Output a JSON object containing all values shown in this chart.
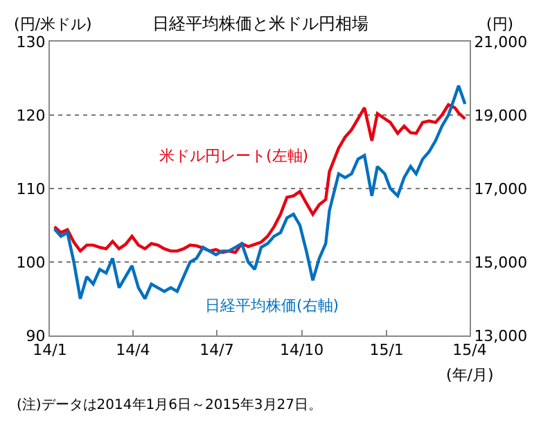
{
  "chart_data": {
    "type": "line",
    "title": "日経平均株価と米ドル円相場",
    "ylabel": "(円/米ドル)",
    "y2label": "(円)",
    "xlabel": "(年/月)",
    "x": [
      "2014-01-06",
      "2014-01-13",
      "2014-01-20",
      "2014-01-27",
      "2014-02-03",
      "2014-02-10",
      "2014-02-17",
      "2014-02-24",
      "2014-03-03",
      "2014-03-10",
      "2014-03-17",
      "2014-03-24",
      "2014-03-31",
      "2014-04-07",
      "2014-04-14",
      "2014-04-21",
      "2014-04-28",
      "2014-05-05",
      "2014-05-12",
      "2014-05-19",
      "2014-05-26",
      "2014-06-02",
      "2014-06-09",
      "2014-06-16",
      "2014-06-23",
      "2014-06-30",
      "2014-07-07",
      "2014-07-14",
      "2014-07-21",
      "2014-07-28",
      "2014-08-04",
      "2014-08-11",
      "2014-08-18",
      "2014-08-25",
      "2014-09-01",
      "2014-09-08",
      "2014-09-15",
      "2014-09-22",
      "2014-09-29",
      "2014-10-06",
      "2014-10-13",
      "2014-10-20",
      "2014-10-27",
      "2014-10-31",
      "2014-11-10",
      "2014-11-17",
      "2014-11-24",
      "2014-12-01",
      "2014-12-08",
      "2014-12-16",
      "2014-12-22",
      "2014-12-30",
      "2015-01-05",
      "2015-01-13",
      "2015-01-20",
      "2015-01-27",
      "2015-02-02",
      "2015-02-09",
      "2015-02-16",
      "2015-02-23",
      "2015-03-02",
      "2015-03-09",
      "2015-03-16",
      "2015-03-20",
      "2015-03-27"
    ],
    "series": [
      {
        "name": "米ドル円レート(左軸)",
        "color": "#e60012",
        "values": [
          104.8,
          104.0,
          104.4,
          102.7,
          101.5,
          102.3,
          102.3,
          102.0,
          101.8,
          102.8,
          101.8,
          102.4,
          103.5,
          102.3,
          101.8,
          102.5,
          102.3,
          101.8,
          101.5,
          101.5,
          101.8,
          102.3,
          102.2,
          101.9,
          101.5,
          101.7,
          101.3,
          101.5,
          101.3,
          102.5,
          102.1,
          102.4,
          102.7,
          103.5,
          104.8,
          106.5,
          108.8,
          109.0,
          109.6,
          108.0,
          106.5,
          107.8,
          108.5,
          112.3,
          115.5,
          117.0,
          118.0,
          119.5,
          121.0,
          116.5,
          120.2,
          119.5,
          119.0,
          117.5,
          118.5,
          117.6,
          117.5,
          119.0,
          119.2,
          119.0,
          120.0,
          121.4,
          121.0,
          120.3,
          119.5
        ]
      },
      {
        "name": "日経平均株価(右軸)",
        "color": "#0070c0",
        "axis": "y2",
        "values": [
          15900,
          15700,
          15800,
          15000,
          14000,
          14600,
          14400,
          14800,
          14700,
          15100,
          14300,
          14600,
          14900,
          14300,
          14000,
          14400,
          14300,
          14200,
          14300,
          14200,
          14600,
          15000,
          15100,
          15400,
          15300,
          15200,
          15300,
          15300,
          15400,
          15500,
          15000,
          14800,
          15400,
          15500,
          15700,
          15800,
          16200,
          16300,
          16000,
          15300,
          14500,
          15100,
          15500,
          16400,
          17400,
          17300,
          17400,
          17800,
          17900,
          16800,
          17600,
          17400,
          17000,
          16800,
          17300,
          17600,
          17400,
          17800,
          18000,
          18300,
          18700,
          19000,
          19500,
          19800,
          19300
        ]
      }
    ],
    "xlim": [
      "2014-01-01",
      "2015-04-01"
    ],
    "xticks": [
      {
        "value": "2014-01-01",
        "label": "14/1"
      },
      {
        "value": "2014-04-01",
        "label": "14/4"
      },
      {
        "value": "2014-07-01",
        "label": "14/7"
      },
      {
        "value": "2014-10-01",
        "label": "14/10"
      },
      {
        "value": "2015-01-01",
        "label": "15/1"
      },
      {
        "value": "2015-04-01",
        "label": "15/4"
      }
    ],
    "ylim": [
      90,
      130
    ],
    "yticks": [
      90,
      100,
      110,
      120,
      130
    ],
    "y2lim": [
      13000,
      21000
    ],
    "y2ticks": [
      {
        "value": 13000,
        "label": "13,000"
      },
      {
        "value": 15000,
        "label": "15,000"
      },
      {
        "value": 17000,
        "label": "17,000"
      },
      {
        "value": 19000,
        "label": "19,000"
      },
      {
        "value": 21000,
        "label": "21,000"
      }
    ],
    "grid": "y",
    "legend": false,
    "marker": "none",
    "line_style": "solid",
    "annotations": [
      "(注)データは2014年1月6日～2015年3月27日。"
    ]
  }
}
